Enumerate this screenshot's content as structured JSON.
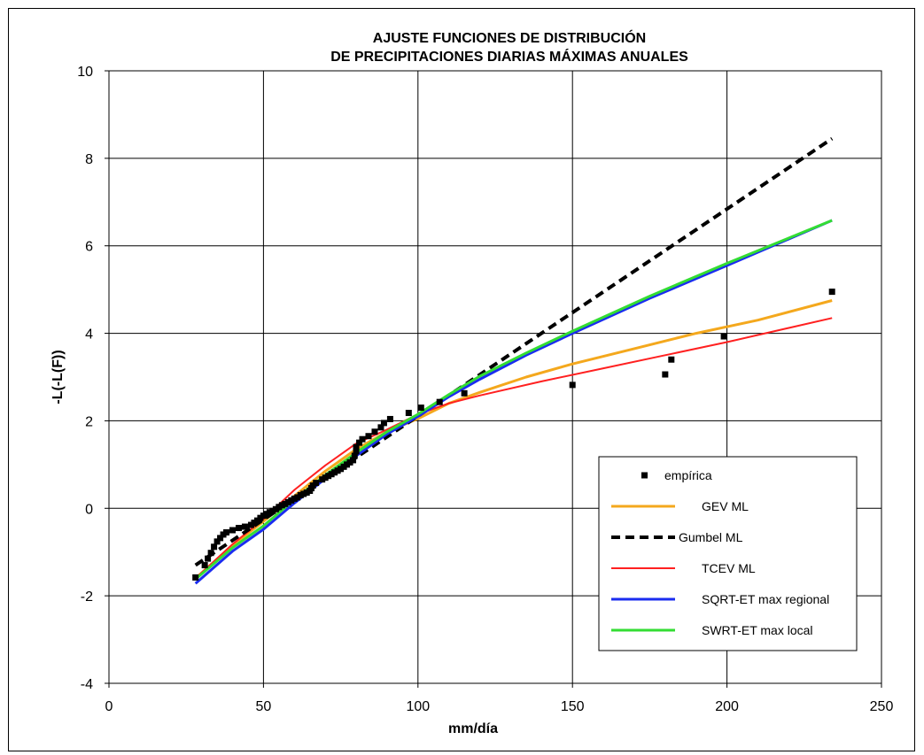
{
  "chart_data": {
    "type": "line",
    "title_line1": "AJUSTE FUNCIONES DE DISTRIBUCIÓN",
    "title_line2": "DE PRECIPITACIONES DIARIAS MÁXIMAS  ANUALES",
    "xlabel": "mm/día",
    "ylabel": "-L(-L(F))",
    "xlim": [
      0,
      250
    ],
    "ylim": [
      -4,
      10
    ],
    "xticks": [
      0,
      50,
      100,
      150,
      200,
      250
    ],
    "yticks": [
      -4,
      -2,
      0,
      2,
      4,
      6,
      8,
      10
    ],
    "grid": true,
    "legend_position": "bottom-right",
    "series": [
      {
        "name": "empírica",
        "kind": "scatter",
        "color": "#000000",
        "points": [
          [
            28,
            -1.58
          ],
          [
            31,
            -1.3
          ],
          [
            32,
            -1.15
          ],
          [
            33,
            -1.02
          ],
          [
            34,
            -0.88
          ],
          [
            35,
            -0.76
          ],
          [
            36,
            -0.68
          ],
          [
            37,
            -0.6
          ],
          [
            38,
            -0.55
          ],
          [
            40,
            -0.5
          ],
          [
            42,
            -0.45
          ],
          [
            44,
            -0.42
          ],
          [
            46,
            -0.38
          ],
          [
            47,
            -0.33
          ],
          [
            48,
            -0.28
          ],
          [
            49,
            -0.22
          ],
          [
            50,
            -0.17
          ],
          [
            51,
            -0.13
          ],
          [
            52,
            -0.09
          ],
          [
            53,
            -0.06
          ],
          [
            54,
            -0.02
          ],
          [
            55,
            0.03
          ],
          [
            56,
            0.07
          ],
          [
            57,
            0.1
          ],
          [
            58,
            0.14
          ],
          [
            59,
            0.18
          ],
          [
            60,
            0.22
          ],
          [
            61,
            0.25
          ],
          [
            62,
            0.3
          ],
          [
            63,
            0.33
          ],
          [
            64,
            0.36
          ],
          [
            65,
            0.4
          ],
          [
            65.5,
            0.46
          ],
          [
            66,
            0.52
          ],
          [
            67,
            0.58
          ],
          [
            69,
            0.66
          ],
          [
            70,
            0.7
          ],
          [
            71,
            0.74
          ],
          [
            72,
            0.78
          ],
          [
            73,
            0.82
          ],
          [
            74,
            0.86
          ],
          [
            75,
            0.9
          ],
          [
            76,
            0.95
          ],
          [
            77,
            1.0
          ],
          [
            78,
            1.05
          ],
          [
            79,
            1.1
          ],
          [
            79.5,
            1.2
          ],
          [
            80,
            1.3
          ],
          [
            80,
            1.4
          ],
          [
            81,
            1.5
          ],
          [
            82,
            1.58
          ],
          [
            84,
            1.65
          ],
          [
            86,
            1.75
          ],
          [
            88,
            1.85
          ],
          [
            89,
            1.95
          ],
          [
            91,
            2.04
          ],
          [
            97,
            2.18
          ],
          [
            101,
            2.3
          ],
          [
            107,
            2.43
          ],
          [
            115,
            2.63
          ],
          [
            150,
            2.82
          ],
          [
            180,
            3.06
          ],
          [
            182,
            3.4
          ],
          [
            199,
            3.93
          ],
          [
            234,
            4.95
          ]
        ]
      },
      {
        "name": "GEV ML",
        "kind": "line",
        "color": "#f4a81d",
        "x": [
          28,
          40,
          50,
          60,
          70,
          80,
          90,
          100,
          110,
          120,
          135,
          150,
          170,
          190,
          210,
          234
        ],
        "y": [
          -1.6,
          -0.85,
          -0.3,
          0.28,
          0.85,
          1.35,
          1.75,
          2.05,
          2.4,
          2.65,
          3.0,
          3.3,
          3.65,
          4.0,
          4.3,
          4.75
        ]
      },
      {
        "name": "Gumbel ML",
        "kind": "line",
        "dashed": true,
        "color": "#000000",
        "x": [
          28,
          234
        ],
        "y": [
          -1.3,
          8.45
        ]
      },
      {
        "name": "TCEV ML",
        "kind": "line",
        "color": "#ff2020",
        "x": [
          28,
          40,
          50,
          60,
          70,
          80,
          90,
          100,
          110,
          120,
          140,
          160,
          180,
          200,
          234
        ],
        "y": [
          -1.6,
          -0.82,
          -0.25,
          0.42,
          0.98,
          1.48,
          1.8,
          2.15,
          2.4,
          2.58,
          2.9,
          3.2,
          3.5,
          3.8,
          4.35
        ]
      },
      {
        "name": "SQRT-ET max regional",
        "kind": "line",
        "color": "#1a2cf0",
        "x": [
          28,
          40,
          50,
          60,
          70,
          80,
          90,
          100,
          110,
          120,
          135,
          150,
          175,
          200,
          234
        ],
        "y": [
          -1.72,
          -0.98,
          -0.48,
          0.12,
          0.68,
          1.2,
          1.7,
          2.1,
          2.55,
          2.95,
          3.5,
          4.0,
          4.8,
          5.55,
          6.58
        ]
      },
      {
        "name": "SWRT-ET max local",
        "kind": "line",
        "color": "#33dd33",
        "x": [
          28,
          40,
          50,
          60,
          70,
          80,
          90,
          100,
          110,
          120,
          135,
          150,
          175,
          200,
          234
        ],
        "y": [
          -1.62,
          -0.9,
          -0.4,
          0.2,
          0.76,
          1.27,
          1.75,
          2.15,
          2.6,
          3.02,
          3.55,
          4.05,
          4.85,
          5.6,
          6.58
        ]
      }
    ]
  }
}
